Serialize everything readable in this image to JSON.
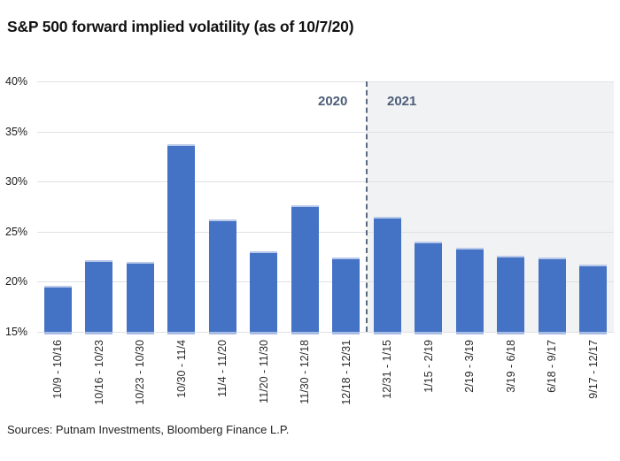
{
  "title": "S&P 500 forward implied volatility (as of 10/7/20)",
  "source_note": "Sources: Putnam Investments, Bloomberg Finance L.P.",
  "colors": {
    "bar": "#4472c4",
    "bar_top_edge": "#b9c9e9",
    "bar_bottom_edge": "#a9bde4",
    "gridline": "#e0e1e3",
    "shaded_region": "#f1f2f4",
    "divider": "#5a6a80",
    "year_label": "#4d5e78",
    "axis_text": "#1a1a1a",
    "title_text": "#111111"
  },
  "chart_data": {
    "type": "bar",
    "title": "S&P 500 forward implied volatility (as of 10/7/20)",
    "categories": [
      "10/9 - 10/16",
      "10/16 - 10/23",
      "10/23 - 10/30",
      "10/30 - 11/4",
      "11/4 - 11/20",
      "11/20 - 11/30",
      "11/30 - 12/18",
      "12/18 - 12/31",
      "12/31 - 1/15",
      "1/15 - 2/19",
      "2/19 - 3/19",
      "3/19 - 6/18",
      "6/18 - 9/17",
      "9/17 - 12/17"
    ],
    "values": [
      19.6,
      22.2,
      22.0,
      33.7,
      26.2,
      23.0,
      27.6,
      22.4,
      26.5,
      24.0,
      23.4,
      22.6,
      22.4,
      21.7
    ],
    "xlabel": "",
    "ylabel": "",
    "ylim": [
      15,
      40
    ],
    "yticks": [
      15,
      20,
      25,
      30,
      35,
      40
    ],
    "ytick_suffix": "%",
    "grid": true,
    "legend_position": "none",
    "year_annotations": {
      "left_of_divider": "2020",
      "right_of_divider": "2021"
    },
    "divider_after_category_index": 7,
    "shaded_region": "right_of_divider"
  }
}
